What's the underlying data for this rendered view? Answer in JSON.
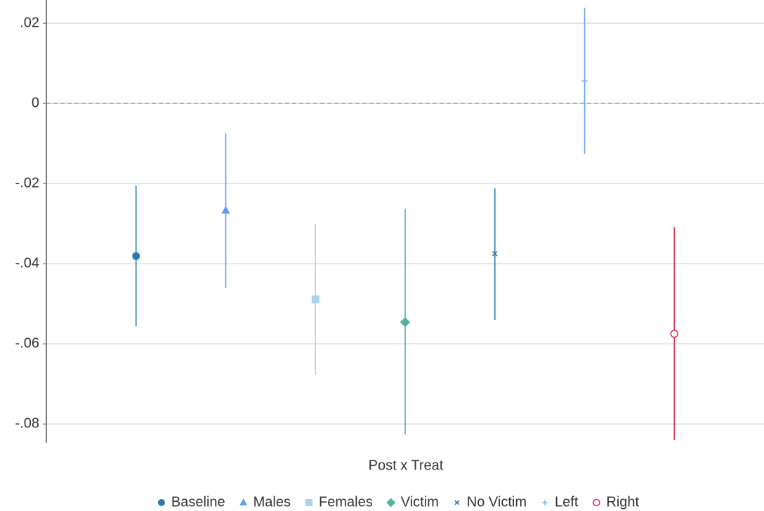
{
  "chart_data": {
    "type": "coefplot",
    "xlabel": "Post x Treat",
    "ylim": [
      -0.0847,
      0.0258
    ],
    "yticks": [
      {
        "value": 0.02,
        "label": ".02"
      },
      0,
      {
        "value": -0.02,
        "label": "-.02"
      },
      {
        "value": -0.04,
        "label": "-.04"
      },
      {
        "value": -0.06,
        "label": "-.06"
      },
      {
        "value": -0.08,
        "label": "-.08"
      }
    ],
    "grid": true,
    "reference_line": 0,
    "reference_color": "#ff6b6b",
    "legend_position": "bottom",
    "series": [
      {
        "name": "Baseline",
        "color": "#2e7ab0",
        "marker": "circle",
        "values": [
          -0.0381
        ],
        "ci_low": [
          -0.0556
        ],
        "ci_high": [
          -0.0205
        ]
      },
      {
        "name": "Males",
        "color": "#5b9cf5",
        "marker": "triangle",
        "values": [
          -0.0267
        ],
        "ci_low": [
          -0.0461
        ],
        "ci_high": [
          -0.0074
        ]
      },
      {
        "name": "Females",
        "color": "#a8d4ec",
        "marker": "square",
        "values": [
          -0.0489
        ],
        "ci_low": [
          -0.0677
        ],
        "ci_high": [
          -0.03
        ]
      },
      {
        "name": "Victim",
        "color": "#4fb3a0",
        "marker": "diamond",
        "values": [
          -0.0546
        ],
        "ci_low": [
          -0.0826
        ],
        "ci_high": [
          -0.0263
        ]
      },
      {
        "name": "No Victim",
        "color": "#2e7ab0",
        "marker": "x",
        "values": [
          -0.0375
        ],
        "ci_low": [
          -0.054
        ],
        "ci_high": [
          -0.0212
        ]
      },
      {
        "name": "Left",
        "color": "#6aa6f0",
        "marker": "plus",
        "values": [
          0.0056
        ],
        "ci_low": [
          -0.0126
        ],
        "ci_high": [
          0.0239
        ]
      },
      {
        "name": "Right",
        "color": "#d6334e",
        "marker": "hollow-circle",
        "values": [
          -0.0575
        ],
        "ci_low": [
          -0.084
        ],
        "ci_high": [
          -0.0309
        ]
      }
    ]
  }
}
